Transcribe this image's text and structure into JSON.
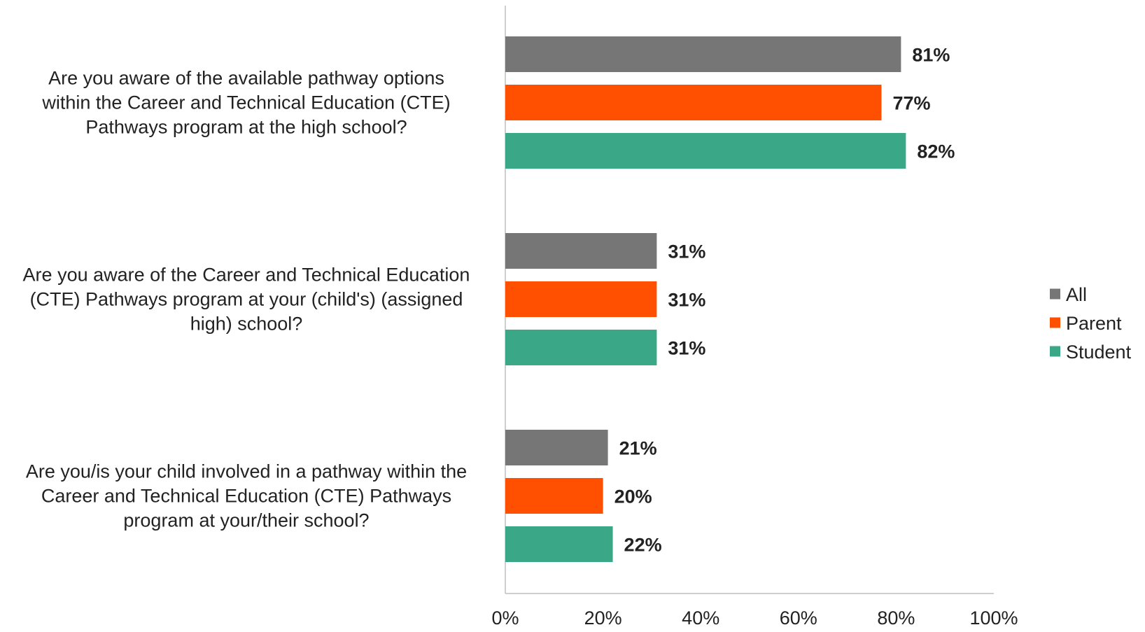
{
  "chart_data": {
    "type": "bar",
    "orientation": "horizontal",
    "title": "",
    "xlabel": "",
    "ylabel": "",
    "categories": [
      "Are you aware of the available pathway options within the Career and Technical Education (CTE) Pathways program at the high school?",
      "Are you aware of the Career and Technical Education (CTE) Pathways program at your (child's) (assigned high) school?",
      "Are you/is your child involved in a pathway within the Career and Technical Education (CTE) Pathways program at your/their school?"
    ],
    "category_lines": [
      [
        "Are you aware of the available pathway options",
        "within the Career and Technical Education (CTE)",
        "Pathways program at the high school?"
      ],
      [
        "Are you aware of the Career and Technical Education",
        "(CTE) Pathways program at your (child's) (assigned",
        "high) school?"
      ],
      [
        "Are you/is your child involved in a pathway within the",
        "Career and Technical Education (CTE) Pathways",
        "program at your/their school?"
      ]
    ],
    "series": [
      {
        "name": "All",
        "color": "#767676",
        "values": [
          81,
          31,
          21
        ],
        "labels": [
          "81%",
          "31%",
          "21%"
        ]
      },
      {
        "name": "Parent",
        "color": "#FF4F00",
        "values": [
          77,
          31,
          20
        ],
        "labels": [
          "77%",
          "31%",
          "20%"
        ]
      },
      {
        "name": "Student",
        "color": "#3AA886",
        "values": [
          82,
          31,
          22
        ],
        "labels": [
          "82%",
          "31%",
          "22%"
        ]
      }
    ],
    "xlim": [
      0,
      100
    ],
    "xticks": [
      "0%",
      "20%",
      "40%",
      "60%",
      "80%",
      "100%"
    ],
    "grid": false,
    "legend_position": "right"
  }
}
